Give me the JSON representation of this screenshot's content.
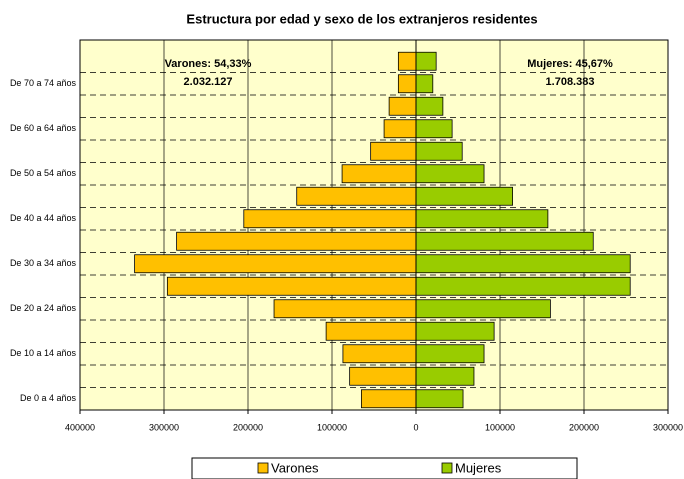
{
  "chart_data": {
    "type": "pyramid",
    "title": "Estructura por edad y sexo de los extranjeros residentes",
    "categories": [
      "De 0 a 4 años",
      null,
      "De 10 a 14 años",
      null,
      "De 20 a 24 años",
      null,
      "De 30 a 34 años",
      null,
      "De 40 a 44 años",
      null,
      "De 50 a 54 años",
      null,
      "De 60 a 64 años",
      null,
      "De 70 a 74 años",
      null
    ],
    "series": [
      {
        "name": "Varones",
        "color": "#ffc000",
        "side": "left",
        "values": [
          65000,
          79000,
          87000,
          107000,
          169000,
          296000,
          335000,
          285000,
          205000,
          142000,
          88000,
          54000,
          38000,
          32000,
          21000,
          21000
        ]
      },
      {
        "name": "Mujeres",
        "color": "#99cc00",
        "side": "right",
        "values": [
          56000,
          69000,
          81000,
          93000,
          160000,
          255000,
          255000,
          211000,
          157000,
          115000,
          81000,
          55000,
          43000,
          32000,
          20000,
          24000
        ]
      }
    ],
    "annotations": [
      "Varones: 54,33%",
      "2.032.127",
      "Mujeres: 45,67%",
      "1.708.383"
    ],
    "xlim": [
      -400000,
      300000
    ],
    "xticks": [
      {
        "value": -400000,
        "label": "400000"
      },
      {
        "value": -300000,
        "label": "300000"
      },
      {
        "value": -200000,
        "label": "200000"
      },
      {
        "value": -100000,
        "label": "100000"
      },
      0,
      100000,
      200000,
      300000
    ],
    "grid": true,
    "legend": "bottom"
  }
}
